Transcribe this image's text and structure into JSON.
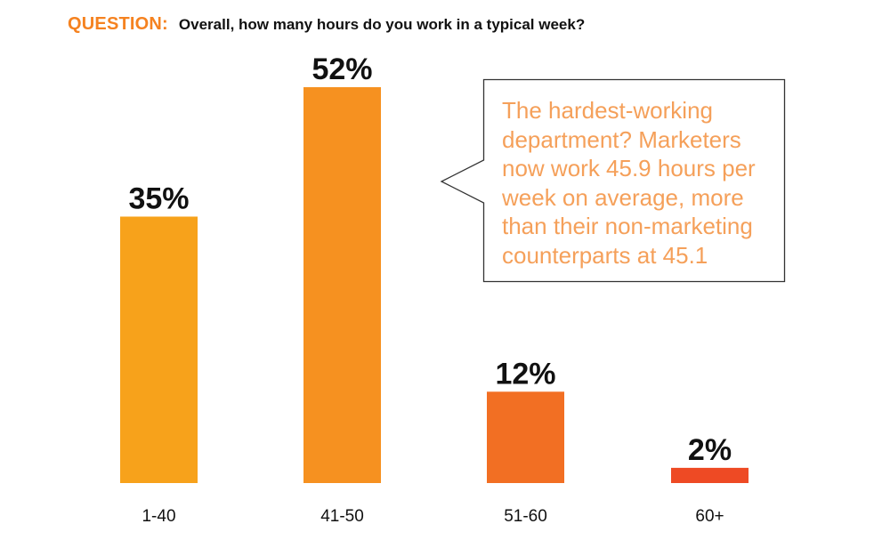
{
  "header": {
    "label": "QUESTION:",
    "question": "Overall, how many hours do you work in a typical week?"
  },
  "callout": {
    "text": "The hardest-working department? Marketers now work 45.9 hours per week on average, more than their non-marketing counterparts at 45.1"
  },
  "colors": {
    "accent": "#f58220",
    "callout_text": "#f5a05a",
    "bar_1": "#f7a21b",
    "bar_2": "#f69120",
    "bar_3": "#f26f23",
    "bar_4": "#ee4a24",
    "label_text": "#111111"
  },
  "chart_data": {
    "type": "bar",
    "categories": [
      "1-40",
      "41-50",
      "51-60",
      "60+"
    ],
    "values": [
      35,
      52,
      12,
      2
    ],
    "data_labels": [
      "35%",
      "52%",
      "12%",
      "2%"
    ],
    "unit": "%",
    "ylim": [
      0,
      52
    ],
    "grid": false,
    "legend": "none"
  }
}
